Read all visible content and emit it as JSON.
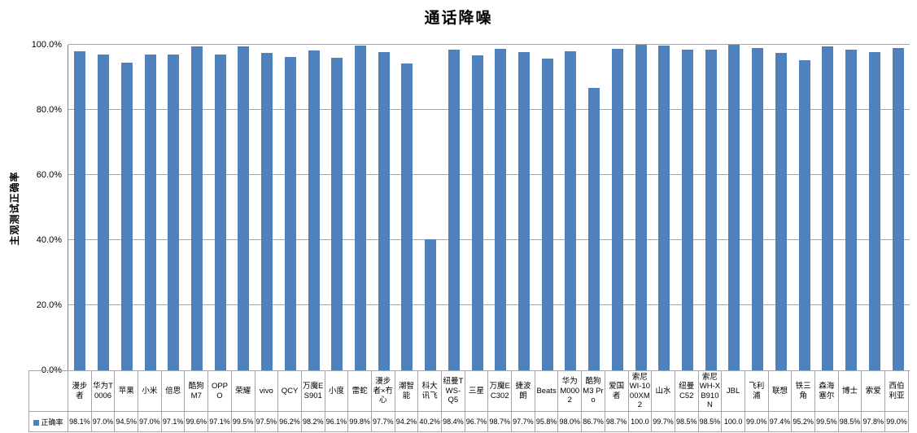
{
  "chart_title": "通话降噪",
  "y_axis": {
    "label": "主观测试正确率",
    "tick_labels": [
      "100.0%",
      "80.0%",
      "60.0%",
      "40.0%",
      "20.0%",
      "0.0%"
    ]
  },
  "legend": {
    "series_label": "正确率"
  },
  "colors": {
    "bar": "#4F81BD",
    "gridline": "#A6A6A6",
    "axis": "#808080",
    "table_border": "#A6A6A6"
  },
  "chart_data": {
    "type": "bar",
    "title": "通话降噪",
    "xlabel": "",
    "ylabel": "主观测试正确率",
    "ylim": [
      0,
      100
    ],
    "ytick_step": 20,
    "ytick_labels": [
      "100.0%",
      "80.0%",
      "60.0%",
      "40.0%",
      "20.0%",
      "0.0%"
    ],
    "grid": true,
    "legend_position": "bottom",
    "series_name": "正确率",
    "bar_color": "#4F81BD",
    "categories": [
      "漫步者",
      "华为T0006",
      "苹果",
      "小米",
      "倍思",
      "酷狗M7",
      "OPPO",
      "荣耀",
      "vivo",
      "QCY",
      "万魔ES901",
      "小度",
      "雷蛇",
      "漫步者×冇心",
      "潮智能",
      "科大讯飞",
      "纽曼TWS-Q5",
      "三星",
      "万魔EC302",
      "捷波朗",
      "Beats",
      "华为M0002",
      "酷狗M3 Pro",
      "爱国者",
      "索尼WI-1000XM2",
      "山水",
      "纽曼C52",
      "索尼WH-XB910N",
      "JBL",
      "飞利浦",
      "联想",
      "铁三角",
      "森海塞尔",
      "博士",
      "索爱",
      "西伯利亚"
    ],
    "values": [
      98.1,
      97.0,
      94.5,
      97.0,
      97.1,
      99.6,
      97.1,
      99.5,
      97.5,
      96.2,
      98.2,
      96.1,
      99.8,
      97.7,
      94.2,
      40.2,
      98.4,
      96.7,
      98.7,
      97.7,
      95.8,
      98.0,
      86.7,
      98.7,
      100.0,
      99.7,
      98.5,
      98.5,
      100.0,
      99.0,
      97.4,
      95.2,
      99.5,
      98.5,
      97.8,
      99.0
    ],
    "display_values": [
      "98.1%",
      "97.0%",
      "94.5%",
      "97.0%",
      "97.1%",
      "99.6%",
      "97.1%",
      "99.5%",
      "97.5%",
      "96.2%",
      "98.2%",
      "96.1%",
      "99.8%",
      "97.7%",
      "94.2%",
      "40.2%",
      "98.4%",
      "96.7%",
      "98.7%",
      "97.7%",
      "95.8%",
      "98.0%",
      "86.7%",
      "98.7%",
      "100.0",
      "99.7%",
      "98.5%",
      "98.5%",
      "100.0",
      "99.0%",
      "97.4%",
      "95.2%",
      "99.5%",
      "98.5%",
      "97.8%",
      "99.0%"
    ]
  }
}
